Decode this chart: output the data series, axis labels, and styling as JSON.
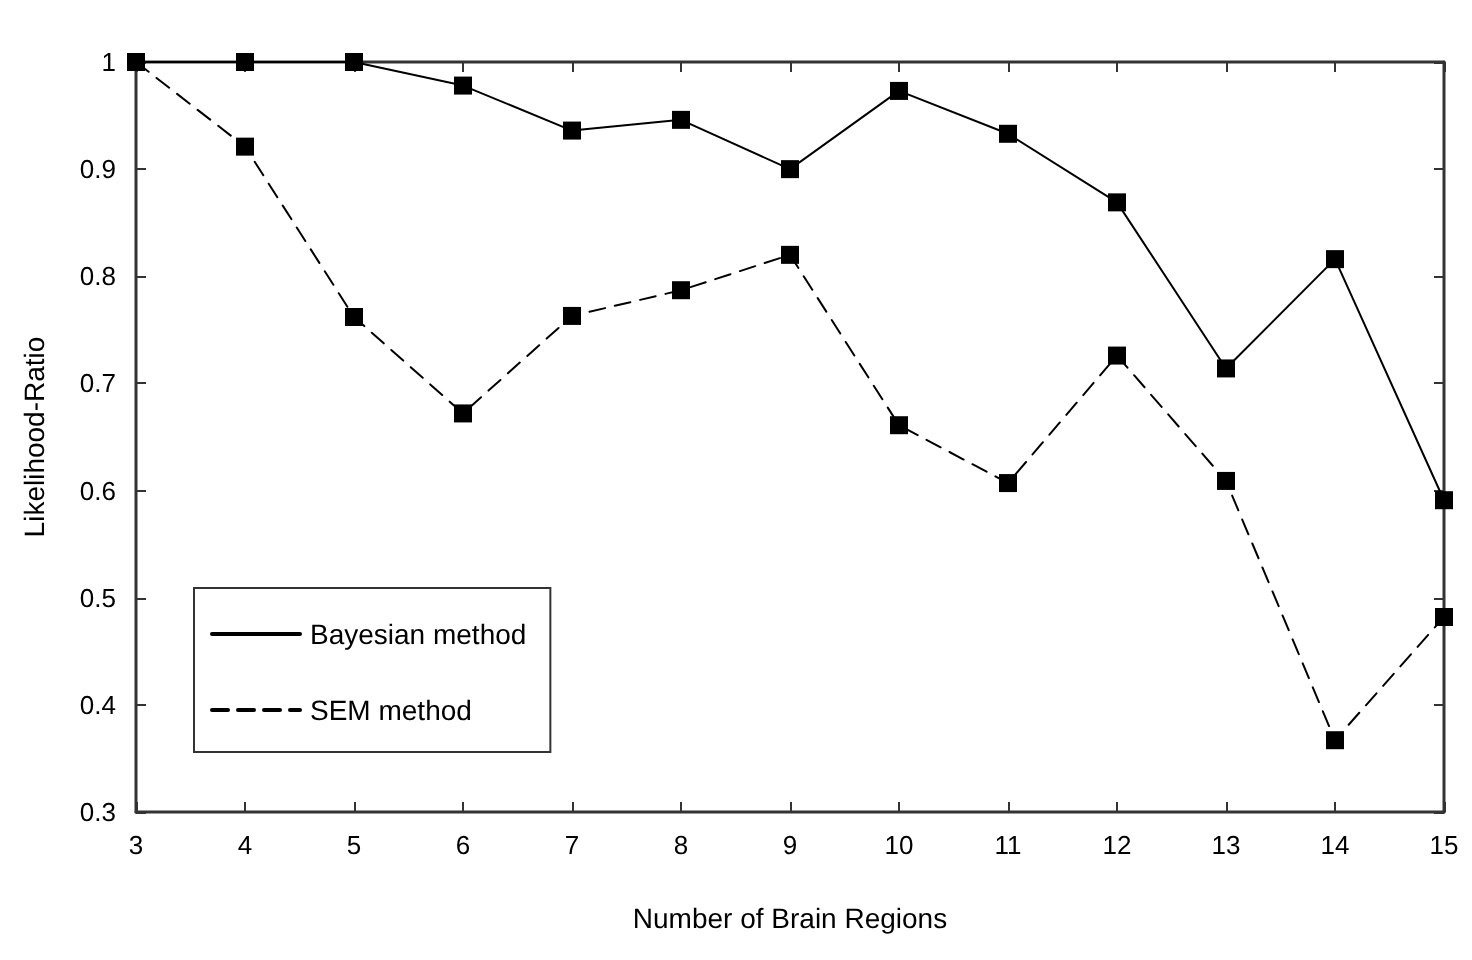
{
  "chart_data": {
    "type": "line",
    "xlabel": "Number of Brain Regions",
    "ylabel": "Likelihood-Ratio",
    "x": [
      3,
      4,
      5,
      6,
      7,
      8,
      9,
      10,
      11,
      12,
      13,
      14,
      15
    ],
    "series": [
      {
        "name": "Bayesian method",
        "color": "#000000",
        "line_style": "solid",
        "values": [
          1.0,
          1.0,
          1.0,
          0.978,
          0.936,
          0.946,
          0.9,
          0.973,
          0.933,
          0.869,
          0.714,
          0.816,
          0.591
        ]
      },
      {
        "name": "SEM method",
        "color": "#000000",
        "line_style": "dashed",
        "values": [
          1.0,
          0.921,
          0.762,
          0.672,
          0.763,
          0.787,
          0.82,
          0.661,
          0.607,
          0.726,
          0.609,
          0.367,
          0.482
        ]
      }
    ],
    "xlim": [
      3,
      15
    ],
    "xticks": [
      3,
      4,
      5,
      6,
      7,
      8,
      9,
      10,
      11,
      12,
      13,
      14,
      15
    ],
    "ylim": [
      0.3,
      1
    ],
    "yticks": [
      0.3,
      0.4,
      0.5,
      0.6,
      0.7,
      0.8,
      0.9,
      1
    ],
    "grid": false,
    "legend": "bottom left",
    "marker": "square"
  }
}
